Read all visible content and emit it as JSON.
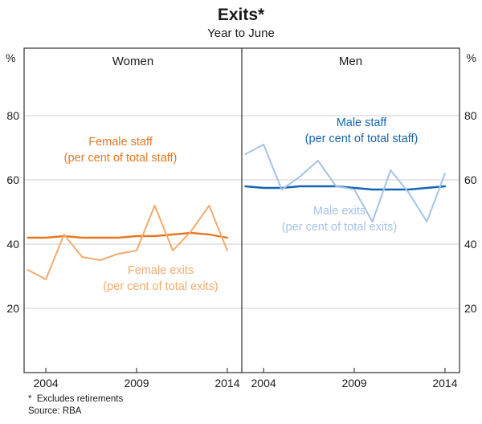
{
  "title": "Exits*",
  "subtitle": "Year to June",
  "footnote": "*  Excludes retirements",
  "source": "Source: RBA",
  "axis": {
    "pct_left": "%",
    "pct_right": "%",
    "y_ticks": [
      20,
      40,
      60,
      80
    ],
    "x_ticks": [
      2004,
      2009,
      2014
    ]
  },
  "panels": [
    {
      "label": "Women"
    },
    {
      "label": "Men"
    }
  ],
  "colors": {
    "frame": "#404040",
    "grid": "#cfcfcf",
    "female_staff": "#E87722",
    "female_exits": "#F5AB6B",
    "male_staff": "#1466B2",
    "male_exits": "#A5C3E6"
  },
  "annotations": {
    "female_staff": {
      "line1": "Female staff",
      "line2": "(per cent of total staff)",
      "color": "#E87722"
    },
    "female_exits": {
      "line1": "Female exits",
      "line2": "(per cent of total exits)",
      "color": "#F5AB6B"
    },
    "male_staff": {
      "line1": "Male staff",
      "line2": "(per cent of total staff)",
      "color": "#1466B2"
    },
    "male_exits": {
      "line1": "Male exits",
      "line2": "(per cent of total exits)",
      "color": "#A5C3E6"
    }
  },
  "chart_data": [
    {
      "type": "line",
      "panel": "Women",
      "x": [
        2003,
        2004,
        2005,
        2006,
        2007,
        2008,
        2009,
        2010,
        2011,
        2012,
        2013,
        2014
      ],
      "series": [
        {
          "id": "female-staff",
          "name": "Female staff (per cent of total staff)",
          "color": "#E87722",
          "width": 2.4,
          "values": [
            42,
            42,
            42.5,
            42,
            42,
            42,
            42.5,
            42.5,
            43,
            43.5,
            43,
            42
          ]
        },
        {
          "id": "female-exits",
          "name": "Female exits (per cent of total exits)",
          "color": "#F5AB6B",
          "width": 2,
          "values": [
            32,
            29,
            43,
            36,
            35,
            37,
            38,
            52,
            38,
            44,
            52,
            38
          ]
        }
      ],
      "ylim": [
        0,
        101
      ],
      "xlim": [
        2002.8,
        2014.8
      ],
      "x_tick_labels": [
        "2004",
        "2009",
        "2014"
      ]
    },
    {
      "type": "line",
      "panel": "Men",
      "x": [
        2003,
        2004,
        2005,
        2006,
        2007,
        2008,
        2009,
        2010,
        2011,
        2012,
        2013,
        2014
      ],
      "series": [
        {
          "id": "male-staff",
          "name": "Male staff (per cent of total staff)",
          "color": "#1466B2",
          "width": 2.4,
          "values": [
            58,
            57.5,
            57.5,
            58,
            58,
            58,
            57.5,
            57,
            57,
            57,
            57.5,
            58
          ]
        },
        {
          "id": "male-exits",
          "name": "Male exits (per cent of total exits)",
          "color": "#A5C3E6",
          "width": 2,
          "values": [
            68,
            71,
            57,
            61,
            66,
            58,
            57,
            47,
            63,
            56,
            47,
            62
          ]
        }
      ],
      "ylim": [
        0,
        101
      ],
      "xlim": [
        2002.8,
        2014.8
      ],
      "x_tick_labels": [
        "2004",
        "2009",
        "2014"
      ]
    }
  ]
}
